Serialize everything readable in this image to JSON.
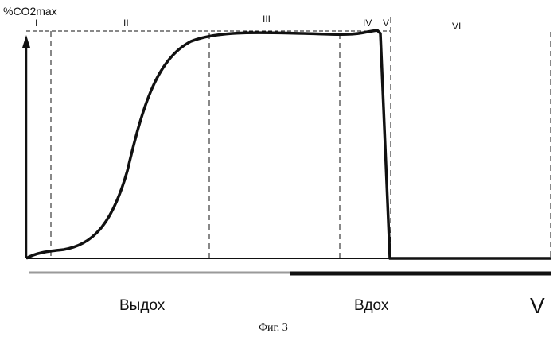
{
  "y_axis_label": "%CO2max",
  "phases": [
    "I",
    "II",
    "III",
    "IV",
    "V",
    "VI"
  ],
  "exhale_label": "Выдох",
  "inhale_label": "Вдох",
  "x_axis_label": "V",
  "caption": "Фиг. 3"
}
